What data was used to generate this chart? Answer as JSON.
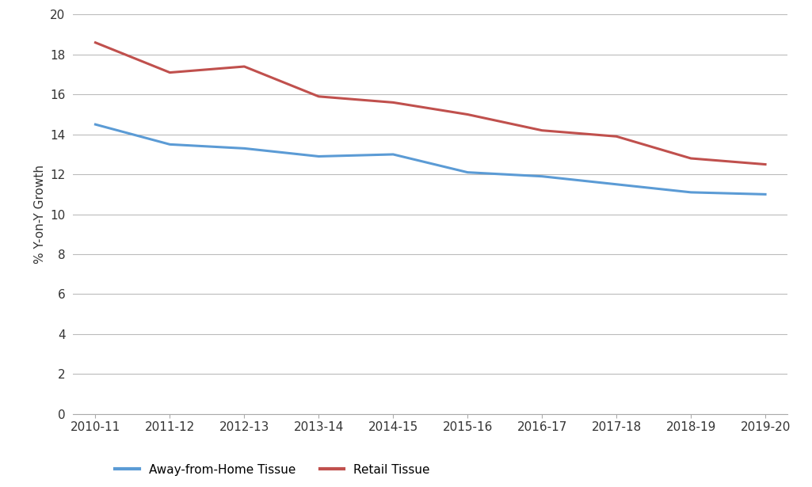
{
  "years": [
    "2010-11",
    "2011-12",
    "2012-13",
    "2013-14",
    "2014-15",
    "2015-16",
    "2016-17",
    "2017-18",
    "2018-19",
    "2019-20"
  ],
  "afh_tissue": [
    14.5,
    13.5,
    13.3,
    12.9,
    13.0,
    12.1,
    11.9,
    11.5,
    11.1,
    11.0
  ],
  "retail_tissue": [
    18.6,
    17.1,
    17.4,
    15.9,
    15.6,
    15.0,
    14.2,
    13.9,
    12.8,
    12.5
  ],
  "afh_color": "#5B9BD5",
  "retail_color": "#C0504D",
  "ylabel": "% Y-on-Y Growth",
  "ylim_min": 0,
  "ylim_max": 20,
  "ytick_step": 2,
  "background_color": "#FFFFFF",
  "grid_color": "#BBBBBB",
  "legend_afh": "Away-from-Home Tissue",
  "legend_retail": "Retail Tissue",
  "line_width": 2.2
}
